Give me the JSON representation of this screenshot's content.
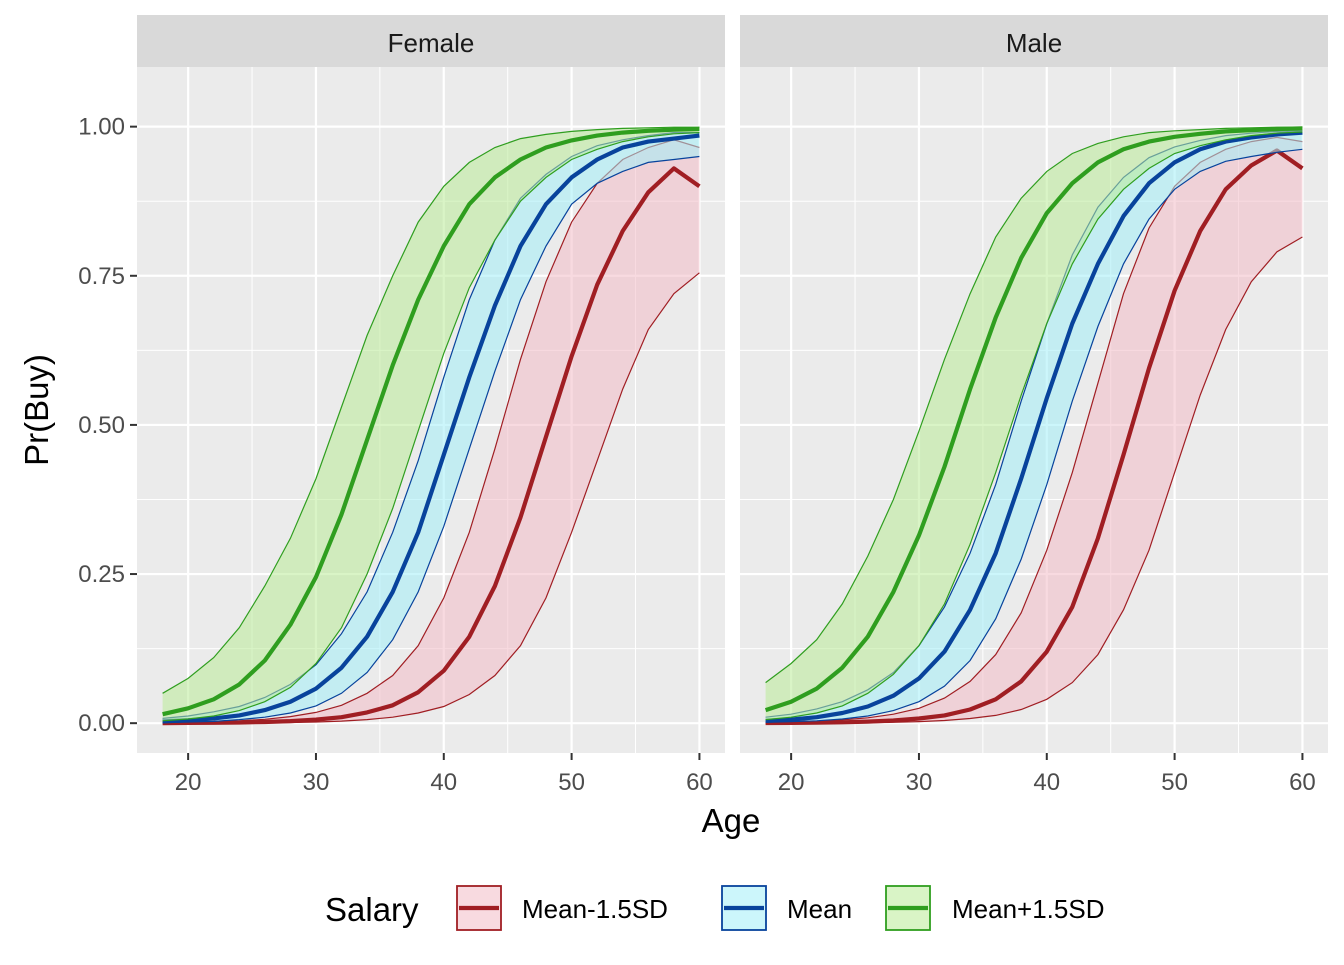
{
  "chart_data": {
    "type": "line",
    "xlabel": "Age",
    "ylabel": "Pr(Buy)",
    "xlim": [
      16,
      62
    ],
    "ylim": [
      -0.05,
      1.1
    ],
    "x_ticks": [
      20,
      30,
      40,
      50,
      60
    ],
    "x_tick_labels": [
      "20",
      "30",
      "40",
      "50",
      "60"
    ],
    "y_ticks": [
      0,
      0.25,
      0.5,
      0.75,
      1.0
    ],
    "y_tick_labels": [
      "0.00",
      "0.25",
      "0.50",
      "0.75",
      "1.00"
    ],
    "grid": true,
    "legend": {
      "title": "Salary",
      "position": "bottom",
      "items": [
        {
          "label": "Mean-1.5SD",
          "color": "#a01e23",
          "fill": "#f3bcc6"
        },
        {
          "label": "Mean",
          "color": "#08439c",
          "fill": "#a3eef7"
        },
        {
          "label": "Mean+1.5SD",
          "color": "#2f9e1f",
          "fill": "#b9eb97"
        }
      ]
    },
    "x": [
      18,
      20,
      22,
      24,
      26,
      28,
      30,
      32,
      34,
      36,
      38,
      40,
      42,
      44,
      46,
      48,
      50,
      52,
      54,
      56,
      58,
      60
    ],
    "panels": [
      {
        "title": "Female",
        "series": [
          {
            "name": "Mean-1.5SD",
            "values": [
              0.0002,
              0.0004,
              0.0007,
              0.0012,
              0.002,
              0.0035,
              0.006,
              0.01,
              0.018,
              0.03,
              0.052,
              0.088,
              0.145,
              0.23,
              0.345,
              0.48,
              0.615,
              0.735,
              0.825,
              0.89,
              0.93,
              0.9
            ],
            "lower": [
              0.0001,
              0.0001,
              0.0002,
              0.0004,
              0.0007,
              0.0012,
              0.002,
              0.0035,
              0.006,
              0.01,
              0.017,
              0.028,
              0.048,
              0.08,
              0.13,
              0.21,
              0.32,
              0.44,
              0.56,
              0.66,
              0.72,
              0.755
            ],
            "upper": [
              0.001,
              0.0015,
              0.0025,
              0.004,
              0.0065,
              0.011,
              0.018,
              0.03,
              0.05,
              0.08,
              0.13,
              0.21,
              0.32,
              0.46,
              0.61,
              0.74,
              0.84,
              0.905,
              0.945,
              0.965,
              0.978,
              0.965
            ]
          },
          {
            "name": "Mean",
            "values": [
              0.003,
              0.005,
              0.008,
              0.013,
              0.022,
              0.036,
              0.058,
              0.093,
              0.145,
              0.22,
              0.32,
              0.45,
              0.58,
              0.7,
              0.8,
              0.87,
              0.915,
              0.945,
              0.965,
              0.975,
              0.98,
              0.985
            ],
            "lower": [
              0.001,
              0.002,
              0.003,
              0.006,
              0.01,
              0.017,
              0.029,
              0.05,
              0.085,
              0.14,
              0.22,
              0.33,
              0.46,
              0.59,
              0.71,
              0.8,
              0.87,
              0.905,
              0.925,
              0.94,
              0.945,
              0.95
            ],
            "upper": [
              0.008,
              0.012,
              0.019,
              0.028,
              0.043,
              0.065,
              0.098,
              0.15,
              0.22,
              0.32,
              0.44,
              0.58,
              0.71,
              0.81,
              0.88,
              0.92,
              0.95,
              0.968,
              0.978,
              0.985,
              0.99,
              0.99
            ]
          },
          {
            "name": "Mean+1.5SD",
            "values": [
              0.015,
              0.025,
              0.04,
              0.065,
              0.105,
              0.165,
              0.245,
              0.35,
              0.475,
              0.6,
              0.71,
              0.8,
              0.87,
              0.915,
              0.945,
              0.965,
              0.977,
              0.985,
              0.99,
              0.993,
              0.995,
              0.996
            ],
            "lower": [
              0.004,
              0.007,
              0.012,
              0.021,
              0.036,
              0.06,
              0.1,
              0.16,
              0.25,
              0.36,
              0.49,
              0.62,
              0.73,
              0.81,
              0.875,
              0.915,
              0.945,
              0.962,
              0.975,
              0.983,
              0.988,
              0.99
            ],
            "upper": [
              0.05,
              0.075,
              0.11,
              0.16,
              0.23,
              0.31,
              0.41,
              0.53,
              0.65,
              0.75,
              0.84,
              0.9,
              0.94,
              0.965,
              0.98,
              0.987,
              0.992,
              0.995,
              0.997,
              0.998,
              0.999,
              0.999
            ]
          }
        ]
      },
      {
        "title": "Male",
        "series": [
          {
            "name": "Mean-1.5SD",
            "values": [
              0.0003,
              0.0005,
              0.0009,
              0.0015,
              0.0026,
              0.0045,
              0.0078,
              0.013,
              0.023,
              0.04,
              0.07,
              0.12,
              0.195,
              0.31,
              0.45,
              0.595,
              0.725,
              0.825,
              0.895,
              0.935,
              0.96,
              0.93
            ],
            "lower": [
              0.0001,
              0.0002,
              0.0003,
              0.0005,
              0.0009,
              0.0015,
              0.0026,
              0.0045,
              0.0078,
              0.013,
              0.023,
              0.04,
              0.068,
              0.115,
              0.19,
              0.29,
              0.42,
              0.55,
              0.66,
              0.74,
              0.79,
              0.815
            ],
            "upper": [
              0.0012,
              0.002,
              0.0033,
              0.0055,
              0.009,
              0.015,
              0.025,
              0.042,
              0.07,
              0.115,
              0.185,
              0.29,
              0.42,
              0.57,
              0.72,
              0.83,
              0.9,
              0.94,
              0.962,
              0.975,
              0.982,
              0.975
            ]
          },
          {
            "name": "Mean",
            "values": [
              0.004,
              0.006,
              0.01,
              0.017,
              0.028,
              0.046,
              0.075,
              0.12,
              0.19,
              0.285,
              0.41,
              0.545,
              0.67,
              0.77,
              0.85,
              0.905,
              0.94,
              0.962,
              0.975,
              0.982,
              0.987,
              0.99
            ],
            "lower": [
              0.0015,
              0.0025,
              0.004,
              0.007,
              0.012,
              0.021,
              0.036,
              0.062,
              0.105,
              0.175,
              0.275,
              0.4,
              0.54,
              0.665,
              0.77,
              0.845,
              0.895,
              0.925,
              0.942,
              0.95,
              0.957,
              0.962
            ],
            "upper": [
              0.01,
              0.015,
              0.024,
              0.036,
              0.056,
              0.085,
              0.13,
              0.195,
              0.285,
              0.4,
              0.54,
              0.67,
              0.785,
              0.865,
              0.915,
              0.948,
              0.966,
              0.977,
              0.985,
              0.989,
              0.992,
              0.994
            ]
          },
          {
            "name": "Mean+1.5SD",
            "values": [
              0.022,
              0.036,
              0.058,
              0.093,
              0.145,
              0.22,
              0.315,
              0.43,
              0.56,
              0.68,
              0.78,
              0.855,
              0.905,
              0.94,
              0.962,
              0.975,
              0.983,
              0.988,
              0.992,
              0.994,
              0.996,
              0.997
            ],
            "lower": [
              0.006,
              0.01,
              0.017,
              0.029,
              0.05,
              0.082,
              0.13,
              0.2,
              0.3,
              0.42,
              0.55,
              0.67,
              0.77,
              0.845,
              0.895,
              0.93,
              0.955,
              0.968,
              0.978,
              0.985,
              0.989,
              0.991
            ],
            "upper": [
              0.068,
              0.1,
              0.14,
              0.2,
              0.28,
              0.375,
              0.49,
              0.61,
              0.72,
              0.815,
              0.88,
              0.925,
              0.955,
              0.972,
              0.983,
              0.99,
              0.993,
              0.995,
              0.997,
              0.998,
              0.999,
              0.999
            ]
          }
        ]
      }
    ]
  }
}
